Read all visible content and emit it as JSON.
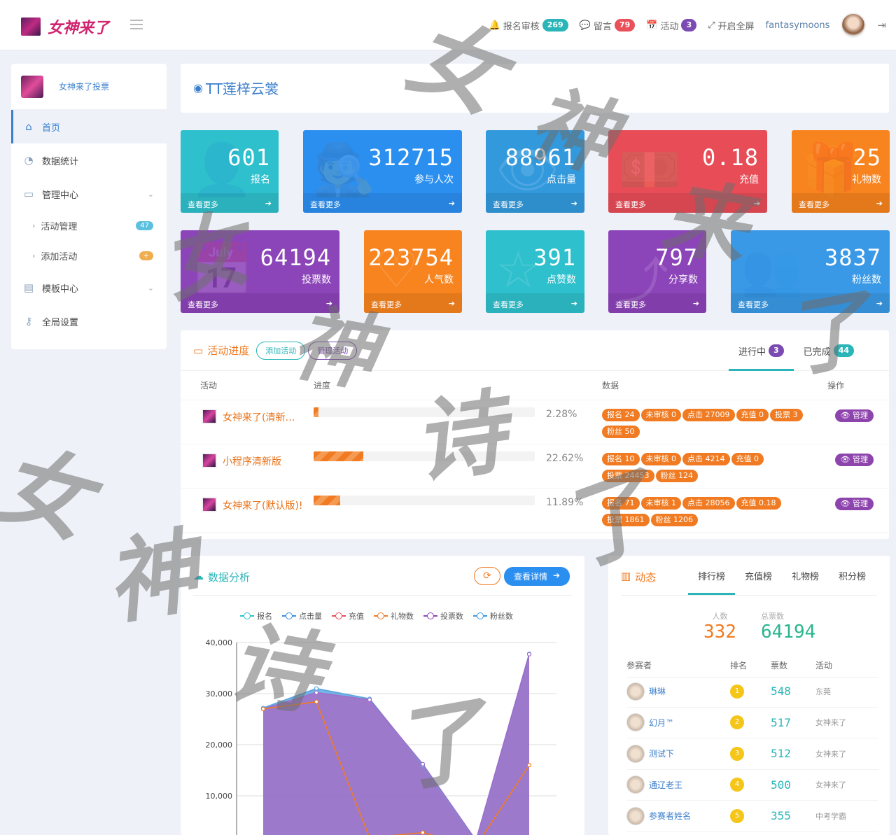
{
  "header": {
    "logo_text": "女神来了",
    "nav": [
      {
        "label": "报名审核",
        "badge": "269",
        "icon": "bell-icon"
      },
      {
        "label": "留言",
        "badge": "79",
        "icon": "comment-icon"
      },
      {
        "label": "活动",
        "badge": "3",
        "icon": "calendar-icon"
      },
      {
        "label": "开启全屏",
        "icon": "fullscreen-icon"
      }
    ],
    "username": "fantasymoons"
  },
  "sidebar": {
    "brand": "女神来了投票",
    "items": [
      {
        "label": "首页",
        "icon": "home-icon"
      },
      {
        "label": "数据统计",
        "icon": "pie-chart-icon"
      },
      {
        "label": "管理中心",
        "icon": "monitor-icon"
      },
      {
        "label": "活动管理",
        "badge": "47"
      },
      {
        "label": "添加活动"
      },
      {
        "label": "模板中心",
        "icon": "file-icon"
      },
      {
        "label": "全局设置",
        "icon": "key-icon"
      }
    ]
  },
  "title": {
    "icon": "wechat-icon",
    "text": "TT莲梓云裳"
  },
  "stats": [
    {
      "value": "601",
      "label": "报名",
      "more": "查看更多",
      "color": "#2ec0cd"
    },
    {
      "value": "312715",
      "label": "参与人次",
      "more": "查看更多",
      "color": "#2b8ff0"
    },
    {
      "value": "88961",
      "label": "点击量",
      "more": "查看更多",
      "color": "#3299dd"
    },
    {
      "value": "0.18",
      "label": "充值",
      "more": "查看更多",
      "color": "#e84d57"
    },
    {
      "value": "25",
      "label": "礼物数",
      "more": "查看更多",
      "color": "#f8841f"
    },
    {
      "value": "64194",
      "label": "投票数",
      "more": "查看更多",
      "color": "#8c44b9"
    },
    {
      "value": "223754",
      "label": "人气数",
      "more": "查看更多",
      "color": "#f8841f"
    },
    {
      "value": "391",
      "label": "点赞数",
      "more": "查看更多",
      "color": "#2ec0cd"
    },
    {
      "value": "797",
      "label": "分享数",
      "more": "查看更多",
      "color": "#8c44b9"
    },
    {
      "value": "3837",
      "label": "粉丝数",
      "more": "查看更多",
      "color": "#3a99e6"
    }
  ],
  "progress": {
    "title": "活动进度",
    "add_btn": "添加活动",
    "manage_btn": "管理活动",
    "tabs": [
      {
        "label": "进行中",
        "badge": "3"
      },
      {
        "label": "已完成",
        "badge": "44"
      }
    ],
    "headers": {
      "activity": "活动",
      "progress": "进度",
      "data": "数据",
      "ops": "操作"
    },
    "rows": [
      {
        "name": "女神来了(清新…",
        "pct": "2.28%",
        "pct_value": 2.28,
        "tags": [
          "报名 24",
          "未审核 0",
          "点击 27009",
          "充值 0",
          "投票 3",
          "粉丝 50"
        ],
        "action": "管理"
      },
      {
        "name": "小程序清新版",
        "pct": "22.62%",
        "pct_value": 22.62,
        "tags": [
          "报名 10",
          "未审核 0",
          "点击 4214",
          "充值 0",
          "投票 24453",
          "粉丝 124"
        ],
        "action": "管理"
      },
      {
        "name": "女神来了(默认版)!",
        "pct": "11.89%",
        "pct_value": 11.89,
        "tags": [
          "报名 71",
          "未审核 1",
          "点击 28056",
          "充值 0.18",
          "投票 1861",
          "粉丝 1206"
        ],
        "action": "管理"
      }
    ]
  },
  "analysis": {
    "title": "数据分析",
    "detail_btn": "查看详情",
    "chart_data": {
      "type": "area",
      "ylim": [
        0,
        40000
      ],
      "y_ticks": [
        "40,000",
        "30,000",
        "20,000",
        "10,000"
      ],
      "legend": [
        "报名",
        "点击量",
        "充值",
        "礼物数",
        "投票数",
        "粉丝数"
      ],
      "series": [
        {
          "name": "点击量",
          "color": "#5aa6e0",
          "values": [
            27200,
            31000,
            29000,
            16000,
            1200,
            37800
          ]
        },
        {
          "name": "投票数",
          "color": "#a06cc8",
          "values": [
            27000,
            30200,
            28800,
            16200,
            1300,
            37700
          ]
        },
        {
          "name": "充值",
          "color": "#f07b22",
          "values": [
            27000,
            28400,
            1800,
            2800,
            100,
            16000
          ]
        }
      ]
    }
  },
  "dynamic": {
    "title": "动态",
    "tabs": [
      "排行榜",
      "充值榜",
      "礼物榜",
      "积分榜"
    ],
    "people_label": "人数",
    "people_value": "332",
    "votes_label": "总票数",
    "votes_value": "64194",
    "headers": {
      "player": "参赛者",
      "rank": "排名",
      "votes": "票数",
      "activity": "活动"
    },
    "rows": [
      {
        "name": "琳琳",
        "rank": "1",
        "votes": "548",
        "activity": "东莞"
      },
      {
        "name": "幻月™",
        "rank": "2",
        "votes": "517",
        "activity": "女神来了"
      },
      {
        "name": "测试下",
        "rank": "3",
        "votes": "512",
        "activity": "女神来了"
      },
      {
        "name": "通辽老王",
        "rank": "4",
        "votes": "500",
        "activity": "女神来了"
      },
      {
        "name": "参赛者姓名",
        "rank": "5",
        "votes": "355",
        "activity": "中考学霸"
      }
    ]
  }
}
